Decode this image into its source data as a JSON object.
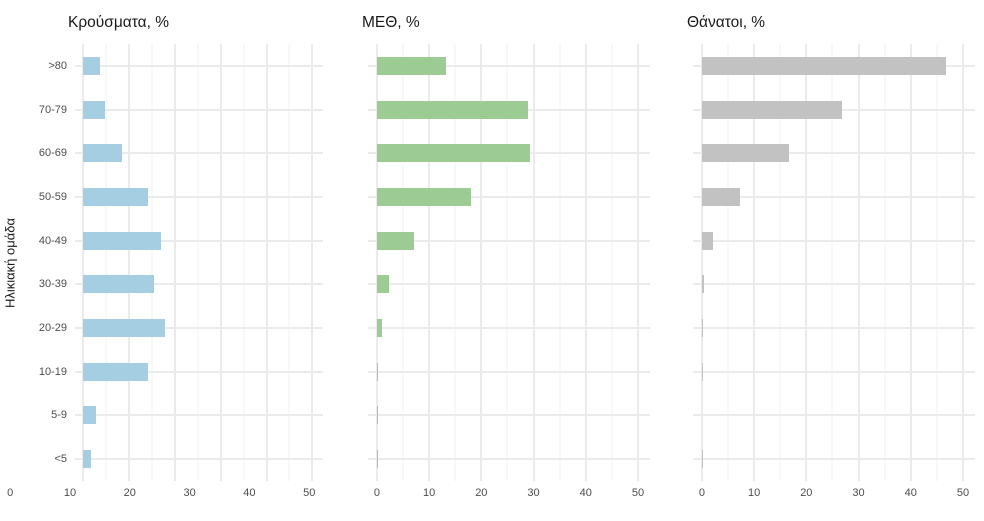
{
  "chart": {
    "y_axis_title": "Ηλικιακή ομάδα",
    "x_tick_labels": [
      "0",
      "10",
      "20",
      "30",
      "40",
      "50"
    ]
  },
  "chart_data": {
    "type": "bar",
    "orientation": "horizontal",
    "facets": [
      "Κρούσματα, %",
      "ΜΕΘ, %",
      "Θάνατοι, %"
    ],
    "categories": [
      ">80",
      "70-79",
      "60-69",
      "50-59",
      "40-49",
      "30-39",
      "20-29",
      "10-19",
      "5-9",
      "<5"
    ],
    "series": [
      {
        "name": "Κρούσματα, %",
        "color": "#a6cee3",
        "values": [
          3.8,
          4.9,
          8.6,
          14.3,
          17.0,
          15.5,
          17.8,
          14.1,
          2.9,
          1.8
        ]
      },
      {
        "name": "ΜΕΘ, %",
        "color": "#9ccb93",
        "values": [
          13.3,
          29.0,
          29.3,
          18.0,
          7.1,
          2.3,
          0.9,
          0.2,
          0.1,
          0.2
        ]
      },
      {
        "name": "Θάνατοι, %",
        "color": "#c2c2c2",
        "values": [
          46.8,
          26.8,
          16.6,
          7.3,
          2.2,
          0.5,
          0.1,
          0.1,
          0.0,
          0.1
        ]
      }
    ],
    "ylabel": "Ηλικιακή ομάδα",
    "xlabel": "",
    "xlim": [
      0,
      52
    ],
    "x_major_ticks": [
      0,
      10,
      20,
      30,
      40,
      50
    ],
    "x_minor_ticks": [
      5,
      15,
      25,
      35,
      45
    ],
    "grid": "x major+minor vertical lines; y major lines at category centers",
    "legend": "none",
    "background": "#ffffff",
    "bar_fraction_of_row": 0.42
  }
}
